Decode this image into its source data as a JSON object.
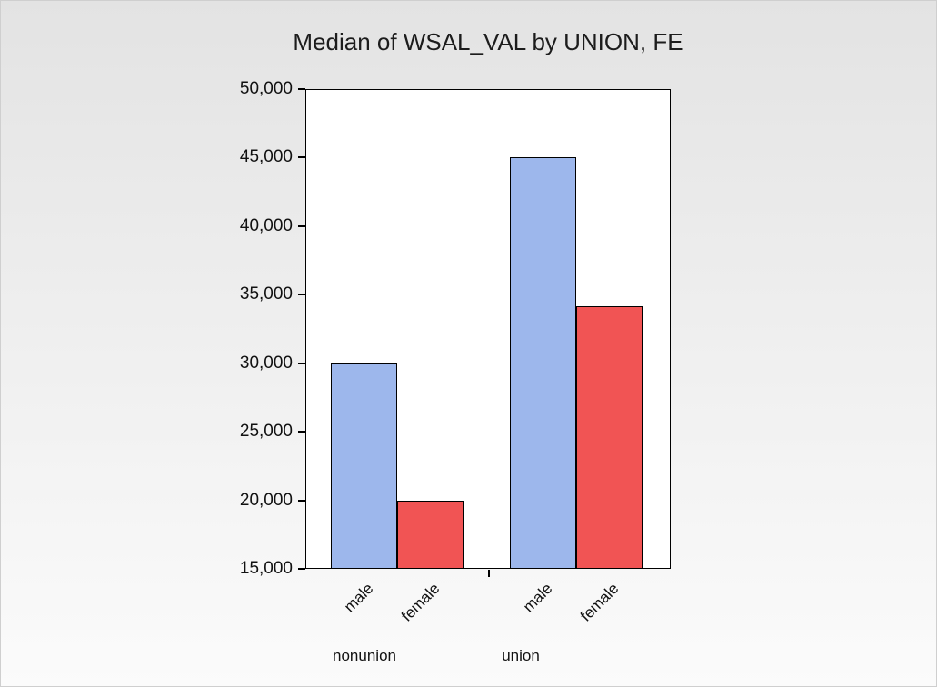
{
  "chart_data": {
    "type": "bar",
    "title": "Median of WSAL_VAL by UNION, FE",
    "categories": [
      "nonunion",
      "union"
    ],
    "series": [
      {
        "name": "male",
        "color": "#9db7ec",
        "values": [
          30000,
          45000
        ]
      },
      {
        "name": "female",
        "color": "#f15454",
        "values": [
          20000,
          34150
        ]
      }
    ],
    "ylim": [
      15000,
      50000
    ],
    "ytick_step": 5000,
    "ytick_labels": [
      "15,000",
      "20,000",
      "25,000",
      "30,000",
      "35,000",
      "40,000",
      "45,000",
      "50,000"
    ],
    "xlabel": "",
    "ylabel": "",
    "grid": false,
    "legend": "none",
    "plot_background": "#ffffff",
    "axis_color": "#000000"
  }
}
